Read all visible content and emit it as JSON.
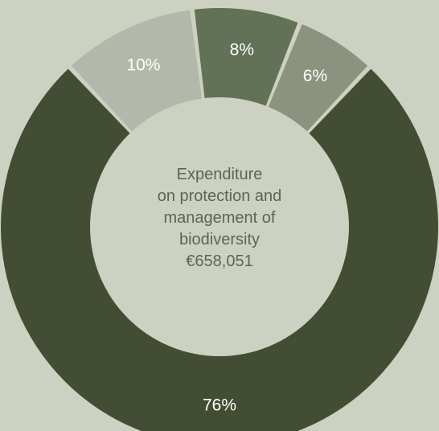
{
  "chart_data": {
    "type": "pie",
    "donut": true,
    "center_lines": [
      "Expenditure",
      "on protection and",
      "management of",
      "biodiversity",
      "€658,051"
    ],
    "slices": [
      {
        "value": 76,
        "label": "76%",
        "color": "#424d33"
      },
      {
        "value": 10,
        "label": "10%",
        "color": "#b3b9aa"
      },
      {
        "value": 8,
        "label": "8%",
        "color": "#637257"
      },
      {
        "value": 6,
        "label": "6%",
        "color": "#8b937f"
      }
    ],
    "colors": {
      "background": "#cdd1c2",
      "hole": "#cdd1c2",
      "center_text": "#59684c",
      "label_text": "#ffffff"
    }
  }
}
